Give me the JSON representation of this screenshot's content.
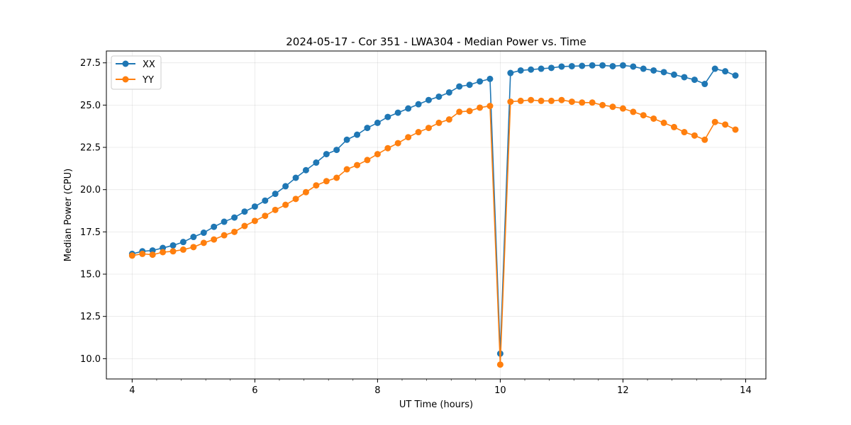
{
  "chart_data": {
    "type": "line",
    "title": "2024-05-17 - Cor 351 - LWA304 - Median Power vs. Time",
    "xlabel": "UT Time (hours)",
    "ylabel": "Median Power (CPU)",
    "xlim": [
      3.58,
      14.33
    ],
    "ylim": [
      8.8,
      28.2
    ],
    "xticks": [
      4,
      6,
      8,
      10,
      12,
      14
    ],
    "xtick_labels": [
      "4",
      "6",
      "8",
      "10",
      "12",
      "14"
    ],
    "yticks": [
      10.0,
      12.5,
      15.0,
      17.5,
      20.0,
      22.5,
      25.0,
      27.5
    ],
    "ytick_labels": [
      "10.0",
      "12.5",
      "15.0",
      "17.5",
      "20.0",
      "22.5",
      "25.0",
      "27.5"
    ],
    "grid": true,
    "legend_position": "top-left",
    "x": [
      4.0,
      4.167,
      4.333,
      4.5,
      4.667,
      4.833,
      5.0,
      5.167,
      5.333,
      5.5,
      5.667,
      5.833,
      6.0,
      6.167,
      6.333,
      6.5,
      6.667,
      6.833,
      7.0,
      7.167,
      7.333,
      7.5,
      7.667,
      7.833,
      8.0,
      8.167,
      8.333,
      8.5,
      8.667,
      8.833,
      9.0,
      9.167,
      9.333,
      9.5,
      9.667,
      9.833,
      10.0,
      10.167,
      10.333,
      10.5,
      10.667,
      10.833,
      11.0,
      11.167,
      11.333,
      11.5,
      11.667,
      11.833,
      12.0,
      12.167,
      12.333,
      12.5,
      12.667,
      12.833,
      13.0,
      13.167,
      13.333,
      13.5,
      13.667,
      13.833
    ],
    "series": [
      {
        "name": "XX",
        "color": "#1f77b4",
        "values": [
          16.2,
          16.35,
          16.4,
          16.55,
          16.7,
          16.9,
          17.2,
          17.45,
          17.8,
          18.1,
          18.35,
          18.7,
          19.0,
          19.35,
          19.75,
          20.2,
          20.7,
          21.15,
          21.6,
          22.1,
          22.35,
          22.95,
          23.25,
          23.65,
          23.95,
          24.3,
          24.55,
          24.8,
          25.05,
          25.3,
          25.5,
          25.75,
          26.1,
          26.2,
          26.4,
          26.55,
          10.3,
          26.9,
          27.05,
          27.1,
          27.15,
          27.2,
          27.28,
          27.3,
          27.32,
          27.35,
          27.35,
          27.3,
          27.35,
          27.28,
          27.15,
          27.05,
          26.95,
          26.8,
          26.65,
          26.5,
          26.25,
          27.15,
          27.0,
          26.75
        ]
      },
      {
        "name": "YY",
        "color": "#ff7f0e",
        "values": [
          16.1,
          16.2,
          16.15,
          16.3,
          16.35,
          16.45,
          16.6,
          16.85,
          17.05,
          17.3,
          17.5,
          17.85,
          18.15,
          18.45,
          18.8,
          19.1,
          19.45,
          19.85,
          20.25,
          20.5,
          20.7,
          21.2,
          21.45,
          21.75,
          22.1,
          22.45,
          22.75,
          23.1,
          23.4,
          23.65,
          23.95,
          24.15,
          24.6,
          24.65,
          24.85,
          24.95,
          9.65,
          25.2,
          25.25,
          25.3,
          25.25,
          25.25,
          25.3,
          25.2,
          25.15,
          25.15,
          25.0,
          24.9,
          24.8,
          24.6,
          24.4,
          24.2,
          23.95,
          23.7,
          23.4,
          23.2,
          22.95,
          24.0,
          23.85,
          23.55
        ]
      }
    ]
  }
}
